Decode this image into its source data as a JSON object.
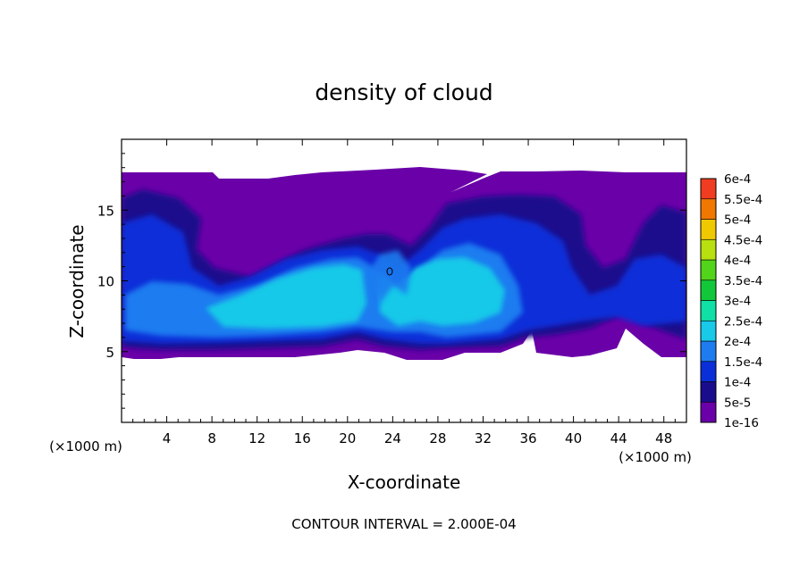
{
  "chart_data": {
    "type": "heatmap",
    "title": "density of cloud",
    "xlabel": "X-coordinate",
    "ylabel": "Z-coordinate",
    "x_unit_left": "(×1000 m)",
    "x_unit_right": "(×1000 m)",
    "xlim": [
      0,
      50
    ],
    "ylim": [
      0,
      20
    ],
    "xticks": [
      4,
      8,
      12,
      16,
      20,
      24,
      28,
      32,
      36,
      40,
      44,
      48
    ],
    "yticks": [
      5,
      10,
      15
    ],
    "footer": "CONTOUR INTERVAL = 2.000E-04",
    "colorbar": {
      "levels": [
        "1e-16",
        "5e-5",
        "1e-4",
        "1.5e-4",
        "2e-4",
        "2.5e-4",
        "3e-4",
        "3.5e-4",
        "4e-4",
        "4.5e-4",
        "5e-4",
        "5.5e-4",
        "6e-4"
      ],
      "colors": [
        "#6a00a8",
        "#1a0d8c",
        "#0a2fd8",
        "#1e7cf0",
        "#19c9e8",
        "#10e0a6",
        "#12c83a",
        "#52d41a",
        "#b8e010",
        "#f0c800",
        "#f07800",
        "#f03c20",
        "#f08c8c"
      ]
    },
    "cloud_regions": [
      {
        "level": 1,
        "x": [
          0,
          50
        ],
        "z": [
          4.5,
          17.5
        ]
      },
      {
        "level": 2,
        "x": [
          0,
          50
        ],
        "z": [
          4.8,
          16.0
        ]
      },
      {
        "level": 3,
        "x": [
          2,
          34
        ],
        "z": [
          5.0,
          12.5
        ]
      },
      {
        "level": 4,
        "x": [
          8,
          33
        ],
        "z": [
          5.5,
          11.5
        ]
      },
      {
        "level": 5,
        "x": [
          13,
          32
        ],
        "z": [
          6.5,
          10.5
        ]
      }
    ]
  }
}
